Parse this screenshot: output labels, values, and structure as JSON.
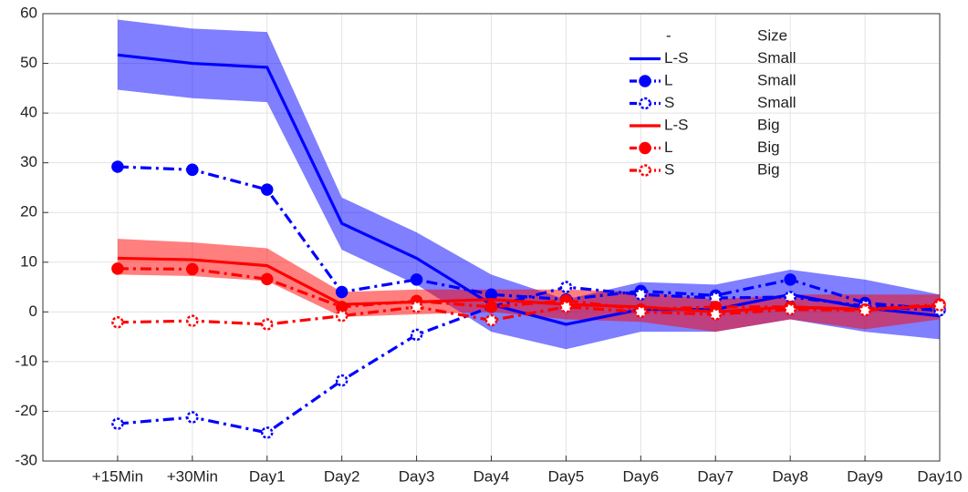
{
  "chart_data": {
    "type": "line",
    "categories": [
      "+15Min",
      "+30Min",
      "Day1",
      "Day2",
      "Day3",
      "Day4",
      "Day5",
      "Day6",
      "Day7",
      "Day8",
      "Day9",
      "Day10"
    ],
    "ylim": [
      -30,
      60
    ],
    "yticks": [
      -30,
      -20,
      -10,
      0,
      10,
      20,
      30,
      40,
      50,
      60
    ],
    "grid": true,
    "legend": {
      "position": "upper right",
      "headers": [
        "-",
        "Size"
      ]
    },
    "series": [
      {
        "name": "L-S",
        "size": "Small",
        "color": "#0000ff",
        "style": "solid",
        "marker": "none",
        "values": [
          51.7,
          50.0,
          49.2,
          17.8,
          10.8,
          1.5,
          -2.5,
          0.5,
          0.5,
          3.5,
          0.8,
          -0.8
        ],
        "band": {
          "upper": [
            58.8,
            57.0,
            56.3,
            23.0,
            16.0,
            7.5,
            2.5,
            6.0,
            5.5,
            8.5,
            6.5,
            3.5
          ],
          "lower": [
            44.7,
            43.0,
            42.2,
            12.5,
            5.5,
            -4.0,
            -7.5,
            -4.0,
            -4.0,
            -1.5,
            -4.0,
            -5.5
          ]
        }
      },
      {
        "name": "L",
        "size": "Small",
        "color": "#0000ff",
        "style": "dashdot",
        "marker": "filled",
        "values": [
          29.2,
          28.6,
          24.6,
          4.0,
          6.5,
          3.5,
          2.5,
          4.2,
          3.3,
          6.5,
          1.8,
          0.5
        ]
      },
      {
        "name": "S",
        "size": "Small",
        "color": "#0000ff",
        "style": "dashdot",
        "marker": "open",
        "values": [
          -22.5,
          -21.2,
          -24.3,
          -13.8,
          -4.6,
          1.0,
          5.0,
          3.5,
          2.8,
          3.0,
          1.2,
          0.3
        ]
      },
      {
        "name": "L-S",
        "size": "Big",
        "color": "#ff0000",
        "style": "solid",
        "marker": "none",
        "values": [
          10.8,
          10.5,
          9.3,
          1.5,
          2.0,
          2.5,
          1.5,
          1.0,
          0.0,
          1.0,
          0.5,
          1.2
        ],
        "band": {
          "upper": [
            14.7,
            14.0,
            12.8,
            4.0,
            4.5,
            4.5,
            4.5,
            4.0,
            2.5,
            3.5,
            3.5,
            3.5
          ],
          "lower": [
            7.5,
            7.2,
            6.2,
            -1.0,
            -0.5,
            0.0,
            -1.5,
            -2.0,
            -4.0,
            -1.5,
            -3.5,
            -1.5
          ]
        }
      },
      {
        "name": "L",
        "size": "Big",
        "color": "#ff0000",
        "style": "dashdot",
        "marker": "filled",
        "values": [
          8.7,
          8.6,
          6.6,
          1.0,
          2.2,
          1.0,
          2.3,
          0.5,
          1.0,
          1.0,
          0.5,
          1.5
        ]
      },
      {
        "name": "S",
        "size": "Big",
        "color": "#ff0000",
        "style": "dashdot",
        "marker": "open",
        "values": [
          -2.1,
          -1.8,
          -2.5,
          -0.8,
          1.0,
          -1.7,
          1.0,
          0.0,
          -0.5,
          0.5,
          0.3,
          1.3
        ]
      }
    ]
  }
}
